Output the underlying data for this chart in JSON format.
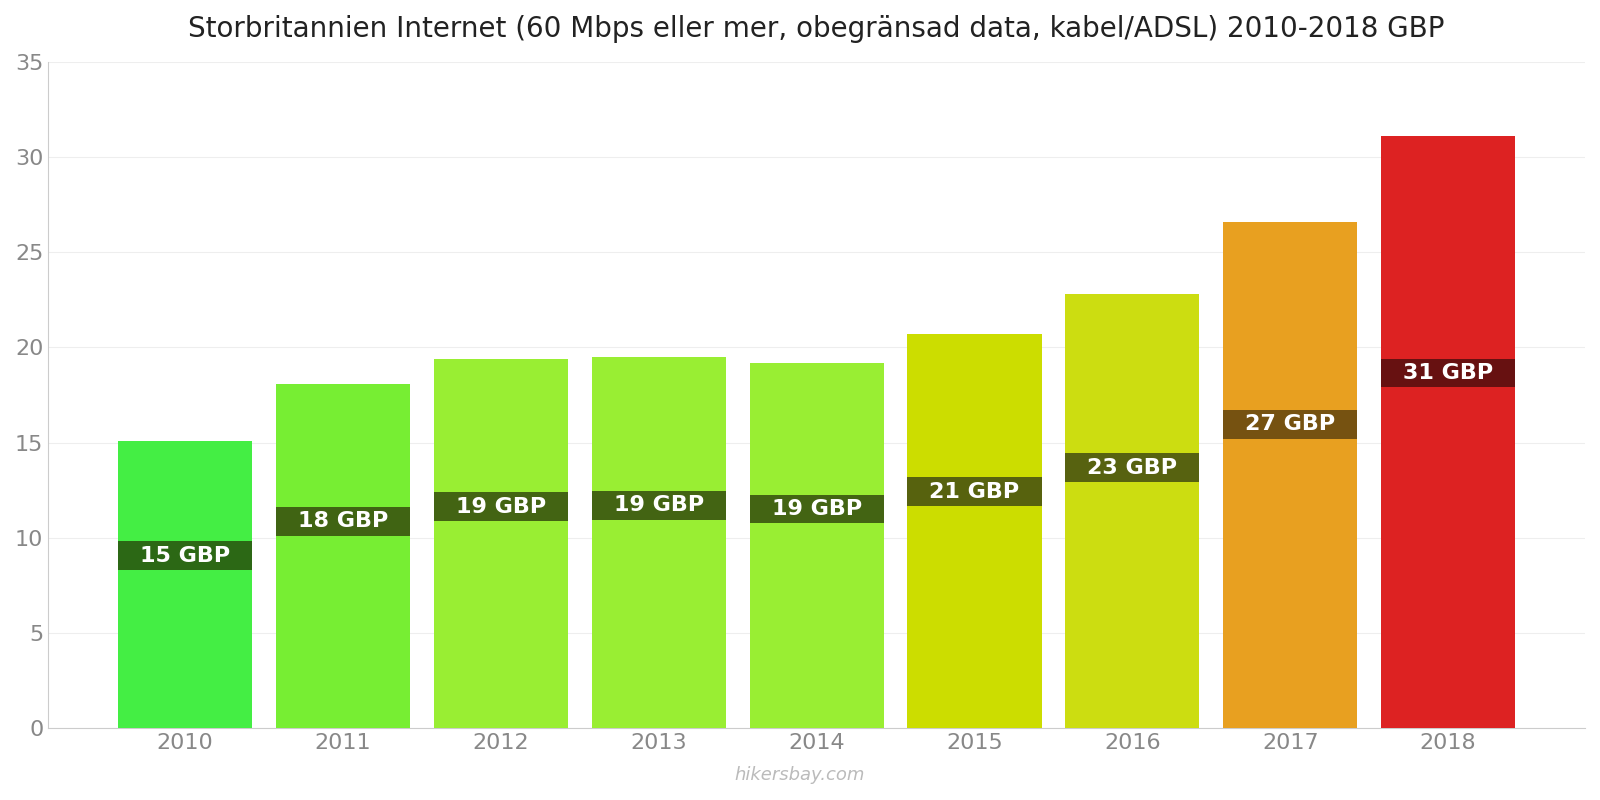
{
  "title": "Storbritannien Internet (60 Mbps eller mer, obegränsad data, kabel/ADSL) 2010-2018 GBP",
  "years": [
    2010,
    2011,
    2012,
    2013,
    2014,
    2015,
    2016,
    2017,
    2018
  ],
  "values": [
    15.1,
    18.1,
    19.4,
    19.5,
    19.2,
    20.7,
    22.8,
    26.6,
    31.1
  ],
  "labels": [
    "15 GBP",
    "18 GBP",
    "19 GBP",
    "19 GBP",
    "19 GBP",
    "21 GBP",
    "23 GBP",
    "27 GBP",
    "31 GBP"
  ],
  "bar_colors": [
    "#44ee44",
    "#77ee33",
    "#99ee33",
    "#99ee33",
    "#99ee33",
    "#ccdd00",
    "#ccdd11",
    "#e8a020",
    "#dd2222"
  ],
  "label_bg_colors": [
    "#2a5a10",
    "#3a5510",
    "#3a5510",
    "#3a5510",
    "#3a5510",
    "#4a5510",
    "#4a5510",
    "#6a4a10",
    "#5a1010"
  ],
  "ylim": [
    0,
    35
  ],
  "yticks": [
    0,
    5,
    10,
    15,
    20,
    25,
    30,
    35
  ],
  "watermark": "hikersbay.com",
  "background_color": "#ffffff",
  "title_fontsize": 20,
  "tick_fontsize": 16,
  "label_fontsize": 16,
  "bar_width": 0.85
}
